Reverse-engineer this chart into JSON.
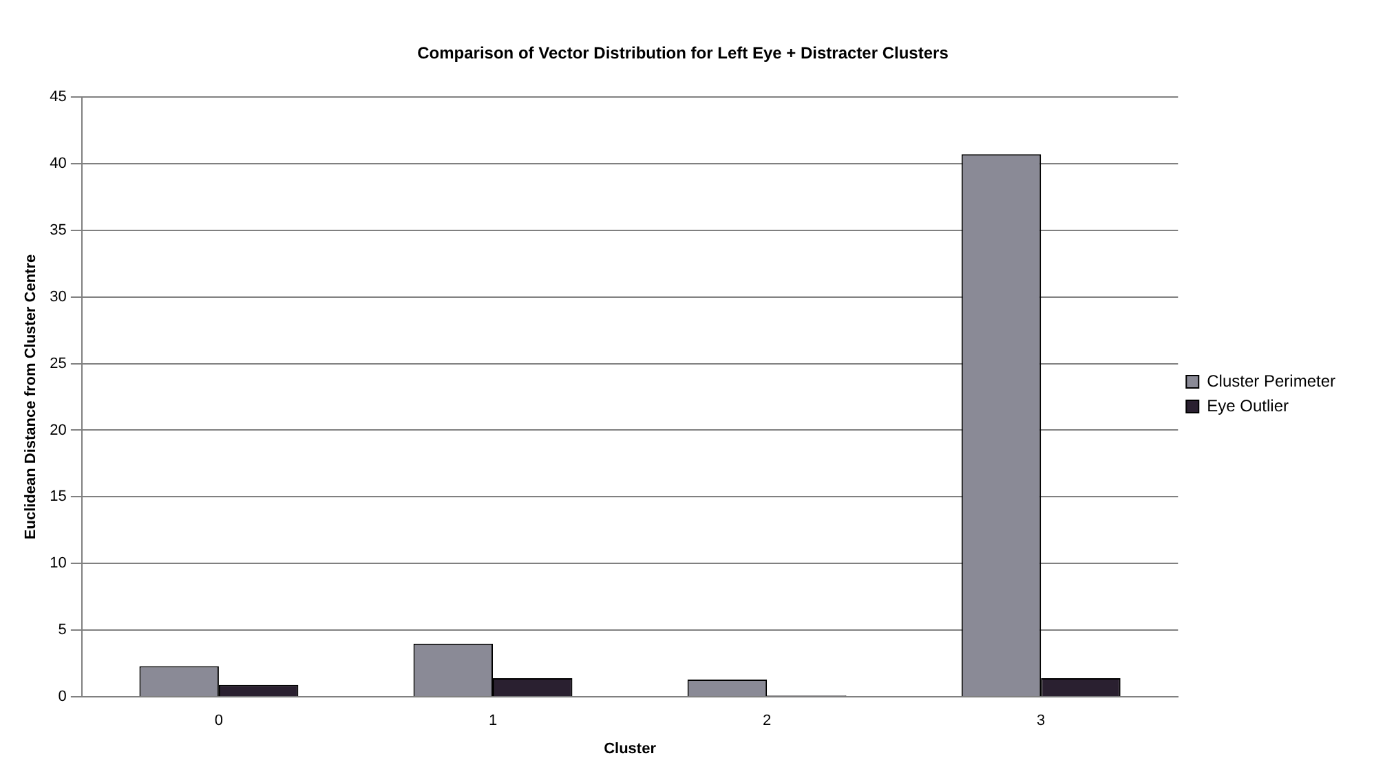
{
  "chart_data": {
    "type": "bar",
    "title": "Comparison of Vector Distribution for Left Eye + Distracter Clusters",
    "xlabel": "Cluster",
    "ylabel": "Euclidean Distance from Cluster Centre",
    "categories": [
      "0",
      "1",
      "2",
      "3"
    ],
    "series": [
      {
        "name": "Cluster Perimeter",
        "color": "#8a8a96",
        "values": [
          2.3,
          4.0,
          1.3,
          40.7
        ]
      },
      {
        "name": "Eye Outlier",
        "color": "#2a2030",
        "values": [
          0.9,
          1.4,
          0.1,
          1.4
        ]
      }
    ],
    "ylim": [
      0,
      45
    ],
    "yticks": [
      0,
      5,
      10,
      15,
      20,
      25,
      30,
      35,
      40,
      45
    ],
    "grid": "y",
    "legend": "right"
  }
}
